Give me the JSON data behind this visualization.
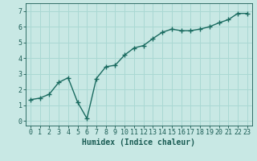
{
  "x": [
    0,
    1,
    2,
    3,
    4,
    5,
    6,
    7,
    8,
    9,
    10,
    11,
    12,
    13,
    14,
    15,
    16,
    17,
    18,
    19,
    20,
    21,
    22,
    23
  ],
  "y": [
    1.35,
    1.45,
    1.7,
    2.45,
    2.75,
    1.2,
    0.15,
    2.7,
    3.45,
    3.55,
    4.2,
    4.65,
    4.8,
    5.25,
    5.65,
    5.85,
    5.75,
    5.75,
    5.85,
    6.0,
    6.25,
    6.45,
    6.85,
    6.85
  ],
  "line_color": "#1a6b60",
  "marker": "+",
  "marker_size": 4,
  "marker_linewidth": 1.0,
  "linewidth": 1.0,
  "xlabel": "Humidex (Indice chaleur)",
  "xlabel_fontsize": 7,
  "xlim": [
    -0.5,
    23.5
  ],
  "ylim": [
    -0.3,
    7.5
  ],
  "yticks": [
    0,
    1,
    2,
    3,
    4,
    5,
    6,
    7
  ],
  "xticks": [
    0,
    1,
    2,
    3,
    4,
    5,
    6,
    7,
    8,
    9,
    10,
    11,
    12,
    13,
    14,
    15,
    16,
    17,
    18,
    19,
    20,
    21,
    22,
    23
  ],
  "grid_color": "#aad8d3",
  "background_color": "#c8e8e4",
  "tick_color": "#1a5c54",
  "tick_fontsize": 6,
  "tick_fontfamily": "monospace"
}
